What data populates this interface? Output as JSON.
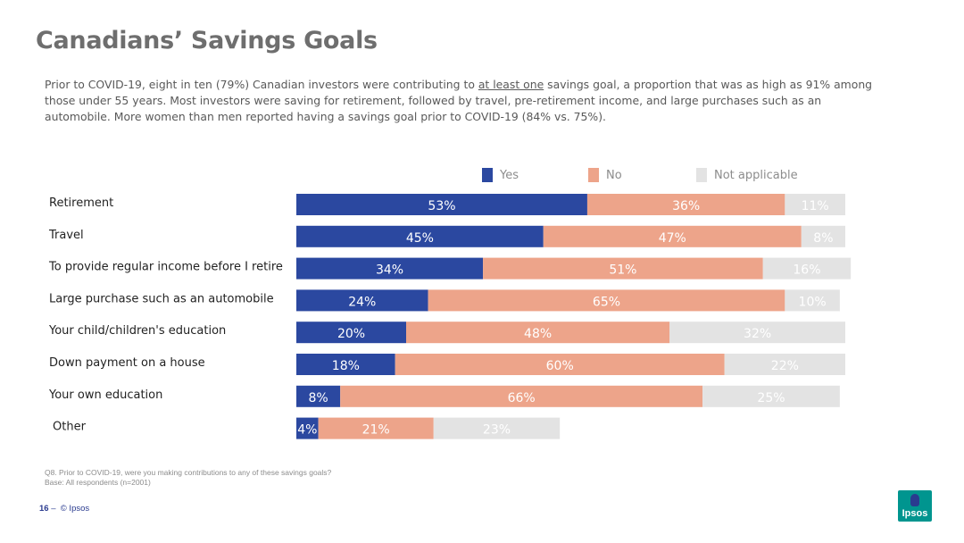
{
  "page": {
    "title": "Canadians’ Savings Goals",
    "intro_before": "Prior to COVID-19, eight in ten (79%) Canadian investors were contributing to ",
    "intro_underlined": "at least one",
    "intro_after": " savings goal, a proportion that was as high as 91% among those under 55 years.  Most investors were saving for retirement, followed by travel, pre-retirement income, and large purchases such as an automobile.   More women than men reported having a savings goal prior to COVID-19 (84% vs. 75%).",
    "footnote_question": "Q8. Prior to COVID-19, were you making contributions to any of these savings goals?",
    "footnote_base": "Base: All respondents (n=2001)",
    "page_number": "16",
    "footer_separator": "–",
    "footer_copyright": "© Ipsos",
    "logo_text": "Ipsos"
  },
  "chart_data": {
    "type": "bar",
    "orientation": "horizontal",
    "stacked": true,
    "legend_position": "top",
    "grid": false,
    "xlim": [
      0,
      100
    ],
    "categories": [
      "Retirement",
      "Travel",
      "To provide regular income before I retire",
      "Large purchase such as an automobile",
      "Your child/children's education",
      "Down payment on a house",
      "Your own education",
      "Other"
    ],
    "series": [
      {
        "name": "Yes",
        "color": "#2b48a0",
        "values": [
          53,
          45,
          34,
          24,
          20,
          18,
          8,
          4
        ]
      },
      {
        "name": "No",
        "color": "#eda48a",
        "values": [
          36,
          47,
          51,
          65,
          48,
          60,
          66,
          21
        ]
      },
      {
        "name": "Not applicable",
        "color": "#e3e3e3",
        "values": [
          11,
          8,
          16,
          10,
          32,
          22,
          25,
          23
        ]
      }
    ],
    "value_suffix": "%"
  }
}
